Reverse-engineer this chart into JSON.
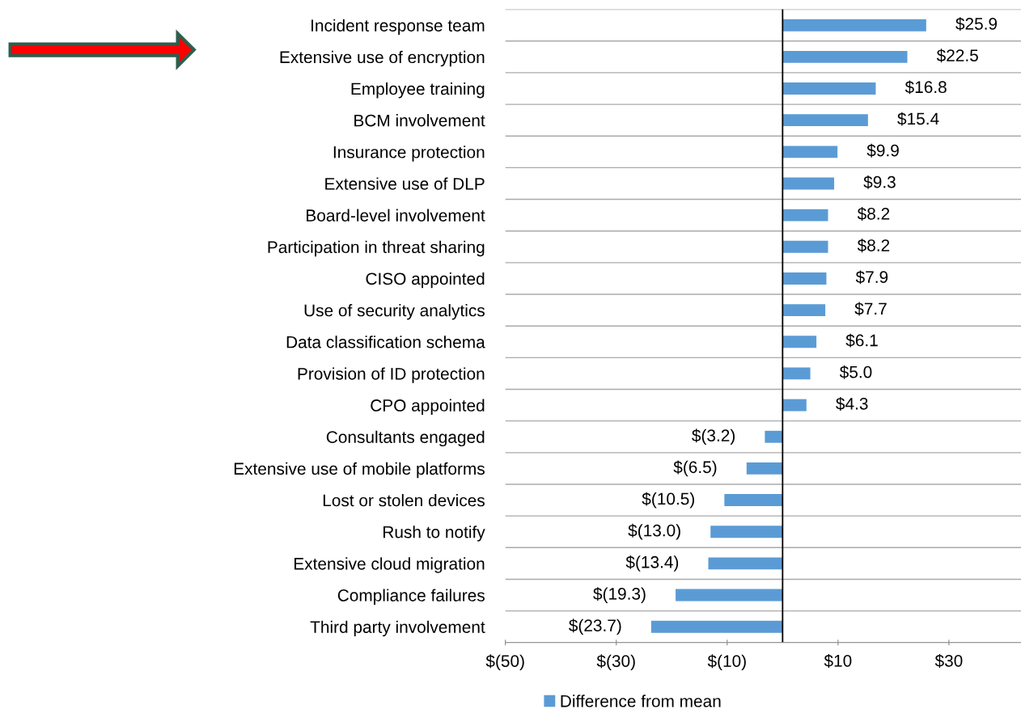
{
  "chart_data": {
    "type": "bar",
    "orientation": "horizontal",
    "categories": [
      "Incident response team",
      "Extensive use of encryption",
      "Employee training",
      "BCM involvement",
      "Insurance protection",
      "Extensive use of DLP",
      "Board-level involvement",
      "Participation in threat sharing",
      "CISO appointed",
      "Use of security analytics",
      "Data classification schema",
      "Provision of ID protection",
      "CPO appointed",
      "Consultants engaged",
      "Extensive use of mobile platforms",
      "Lost or stolen devices",
      "Rush to notify",
      "Extensive cloud migration",
      "Compliance failures",
      "Third party involvement"
    ],
    "series": [
      {
        "name": "Difference from mean",
        "color": "#5b9bd5",
        "values": [
          25.9,
          22.5,
          16.8,
          15.4,
          9.9,
          9.3,
          8.2,
          8.2,
          7.9,
          7.7,
          6.1,
          5.0,
          4.3,
          -3.2,
          -6.5,
          -10.5,
          -13.0,
          -13.4,
          -19.3,
          -23.7
        ],
        "value_labels": [
          "$25.9",
          "$22.5",
          "$16.8",
          "$15.4",
          "$9.9",
          "$9.3",
          "$8.2",
          "$8.2",
          "$7.9",
          "$7.7",
          "$6.1",
          "$5.0",
          "$4.3",
          "$(3.2)",
          "$(6.5)",
          "$(10.5)",
          "$(13.0)",
          "$(13.4)",
          "$(19.3)",
          "$(23.7)"
        ]
      }
    ],
    "xlim": [
      -50,
      43
    ],
    "xticks": [
      {
        "value": -50,
        "label": "$(50)"
      },
      {
        "value": -30,
        "label": "$(30)"
      },
      {
        "value": -10,
        "label": "$(10)"
      },
      {
        "value": 10,
        "label": "$10"
      },
      {
        "value": 30,
        "label": "$30"
      }
    ],
    "grid": "y",
    "legend": "bottom"
  }
}
